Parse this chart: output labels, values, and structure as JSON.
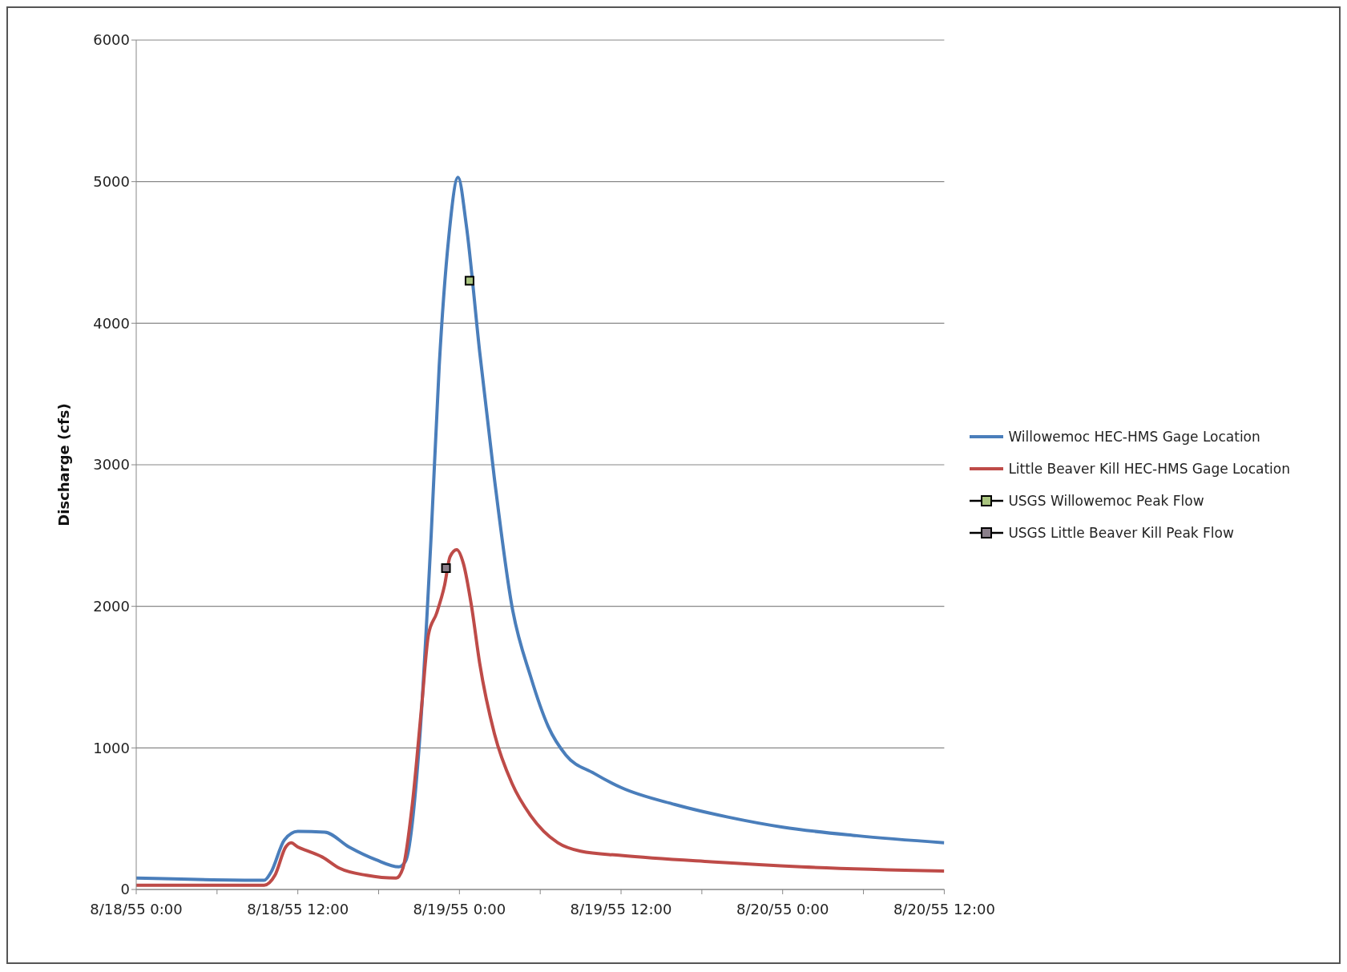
{
  "chart_data": {
    "type": "line",
    "ylabel": "Discharge (cfs)",
    "ylim": [
      0,
      6000
    ],
    "yticks": [
      0,
      1000,
      2000,
      3000,
      4000,
      5000,
      6000
    ],
    "xlim": [
      "1955-08-18T00:00",
      "1955-08-20T12:00"
    ],
    "xticks": [
      {
        "value": "1955-08-18T00:00",
        "label": "8/18/55 0:00"
      },
      {
        "value": "1955-08-18T06:00",
        "label": null
      },
      {
        "value": "1955-08-18T12:00",
        "label": "8/18/55 12:00"
      },
      {
        "value": "1955-08-18T18:00",
        "label": null
      },
      {
        "value": "1955-08-19T00:00",
        "label": "8/19/55 0:00"
      },
      {
        "value": "1955-08-19T06:00",
        "label": null
      },
      {
        "value": "1955-08-19T12:00",
        "label": "8/19/55 12:00"
      },
      {
        "value": "1955-08-19T18:00",
        "label": null
      },
      {
        "value": "1955-08-20T00:00",
        "label": "8/20/55 0:00"
      },
      {
        "value": "1955-08-20T06:00",
        "label": null
      },
      {
        "value": "1955-08-20T12:00",
        "label": "8/20/55 12:00"
      }
    ],
    "grid": "y",
    "legend": "right",
    "line_style": "solid",
    "series": [
      {
        "name": "Willowemoc HEC-HMS Gage Location",
        "color": "#4a7ebb",
        "marker": "none",
        "x": [
          "1955-08-18T00:00",
          "1955-08-18T09:30",
          "1955-08-18T10:00",
          "1955-08-18T11:00",
          "1955-08-18T12:00",
          "1955-08-18T14:00",
          "1955-08-18T15:48",
          "1955-08-18T17:48",
          "1955-08-18T19:30",
          "1955-08-18T20:00",
          "1955-08-18T21:00",
          "1955-08-18T21:54",
          "1955-08-18T22:30",
          "1955-08-18T23:12",
          "1955-08-18T23:54",
          "1955-08-19T00:30",
          "1955-08-19T01:30",
          "1955-08-19T02:36",
          "1955-08-19T03:54",
          "1955-08-19T05:18",
          "1955-08-19T06:36",
          "1955-08-19T07:54",
          "1955-08-19T10:00",
          "1955-08-19T12:00",
          "1955-08-19T16:00",
          "1955-08-19T20:00",
          "1955-08-20T00:00",
          "1955-08-20T05:30",
          "1955-08-20T12:00"
        ],
        "values": [
          80,
          65,
          120,
          350,
          410,
          405,
          300,
          210,
          160,
          200,
          1000,
          2500,
          3700,
          4600,
          5030,
          4700,
          3800,
          2900,
          2000,
          1500,
          1150,
          950,
          820,
          720,
          600,
          510,
          440,
          380,
          330
        ]
      },
      {
        "name": "Little Beaver Kill HEC-HMS Gage Location",
        "color": "#be4b48",
        "marker": "none",
        "x": [
          "1955-08-18T00:00",
          "1955-08-18T09:30",
          "1955-08-18T10:18",
          "1955-08-18T11:06",
          "1955-08-18T11:30",
          "1955-08-18T12:00",
          "1955-08-18T12:48",
          "1955-08-18T13:48",
          "1955-08-18T15:06",
          "1955-08-18T17:06",
          "1955-08-18T19:18",
          "1955-08-18T19:48",
          "1955-08-18T20:30",
          "1955-08-18T21:12",
          "1955-08-18T21:42",
          "1955-08-18T22:18",
          "1955-08-18T22:54",
          "1955-08-18T23:18",
          "1955-08-18T23:48",
          "1955-08-19T00:18",
          "1955-08-19T00:54",
          "1955-08-19T01:30",
          "1955-08-19T02:36",
          "1955-08-19T03:54",
          "1955-08-19T05:18",
          "1955-08-19T07:18",
          "1955-08-19T09:00",
          "1955-08-19T12:00",
          "1955-08-19T18:42",
          "1955-08-20T01:24",
          "1955-08-20T12:00"
        ],
        "values": [
          30,
          30,
          100,
          300,
          330,
          300,
          270,
          230,
          150,
          100,
          80,
          150,
          600,
          1300,
          1800,
          1950,
          2150,
          2350,
          2400,
          2300,
          2000,
          1600,
          1100,
          750,
          520,
          330,
          270,
          240,
          195,
          160,
          130
        ]
      },
      {
        "name": "USGS Willowemoc Peak Flow",
        "type": "scatter",
        "color": "#a9c47f",
        "marker": "square",
        "x": [
          "1955-08-19T00:45"
        ],
        "values": [
          4300
        ]
      },
      {
        "name": "USGS Little Beaver Kill Peak Flow",
        "type": "scatter",
        "color": "#8a7f8a",
        "marker": "square",
        "x": [
          "1955-08-18T23:00"
        ],
        "values": [
          2270
        ]
      }
    ]
  }
}
